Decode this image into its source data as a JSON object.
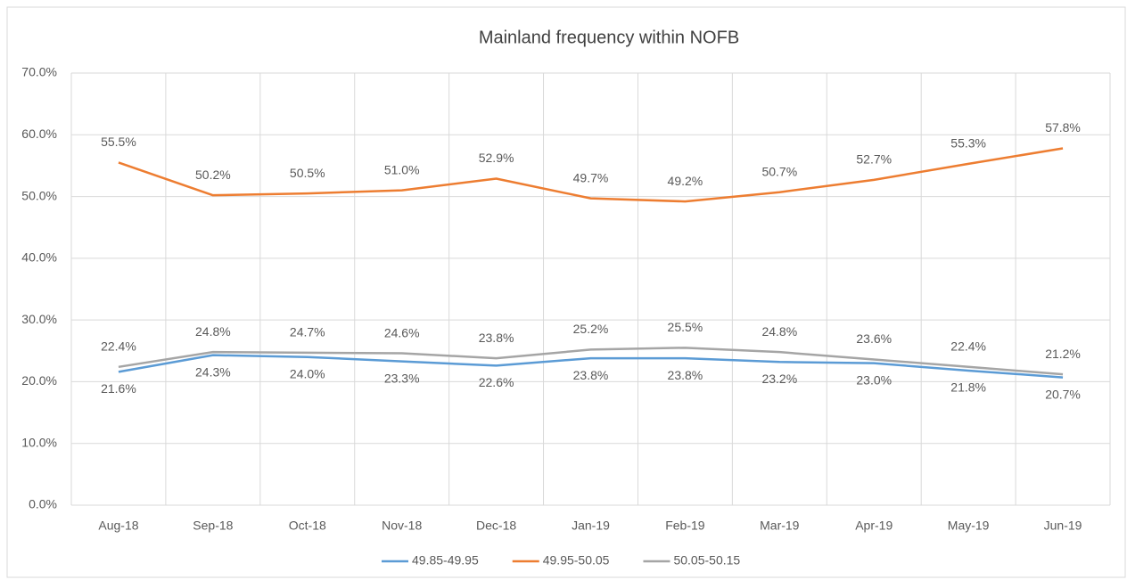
{
  "chart_data": {
    "type": "line",
    "title": "Mainland frequency within NOFB",
    "categories": [
      "Aug-18",
      "Sep-18",
      "Oct-18",
      "Nov-18",
      "Dec-18",
      "Jan-19",
      "Feb-19",
      "Mar-19",
      "Apr-19",
      "May-19",
      "Jun-19"
    ],
    "series": [
      {
        "name": "49.85-49.95",
        "color": "#5b9bd5",
        "values": [
          21.6,
          24.3,
          24.0,
          23.3,
          22.6,
          23.8,
          23.8,
          23.2,
          23.0,
          21.8,
          20.7
        ],
        "value_labels": [
          "21.6%",
          "24.3%",
          "24.0%",
          "23.3%",
          "22.6%",
          "23.8%",
          "23.8%",
          "23.2%",
          "23.0%",
          "21.8%",
          "20.7%"
        ]
      },
      {
        "name": "49.95-50.05",
        "color": "#ed7d31",
        "values": [
          55.5,
          50.2,
          50.5,
          51.0,
          52.9,
          49.7,
          49.2,
          50.7,
          52.7,
          55.3,
          57.8
        ],
        "value_labels": [
          "55.5%",
          "50.2%",
          "50.5%",
          "51.0%",
          "52.9%",
          "49.7%",
          "49.2%",
          "50.7%",
          "52.7%",
          "55.3%",
          "57.8%"
        ]
      },
      {
        "name": "50.05-50.15",
        "color": "#a5a5a5",
        "values": [
          22.4,
          24.8,
          24.7,
          24.6,
          23.8,
          25.2,
          25.5,
          24.8,
          23.6,
          22.4,
          21.2
        ],
        "value_labels": [
          "22.4%",
          "24.8%",
          "24.7%",
          "24.6%",
          "23.8%",
          "25.2%",
          "25.5%",
          "24.8%",
          "23.6%",
          "22.4%",
          "21.2%"
        ]
      }
    ],
    "ylim": [
      0,
      70
    ],
    "yticks": [
      {
        "value": 0,
        "label": "0.0%"
      },
      {
        "value": 10,
        "label": "10.0%"
      },
      {
        "value": 20,
        "label": "20.0%"
      },
      {
        "value": 30,
        "label": "30.0%"
      },
      {
        "value": 40,
        "label": "40.0%"
      },
      {
        "value": 50,
        "label": "50.0%"
      },
      {
        "value": 60,
        "label": "60.0%"
      },
      {
        "value": 70,
        "label": "70.0%"
      }
    ],
    "grid": true,
    "legend": "bottom"
  }
}
